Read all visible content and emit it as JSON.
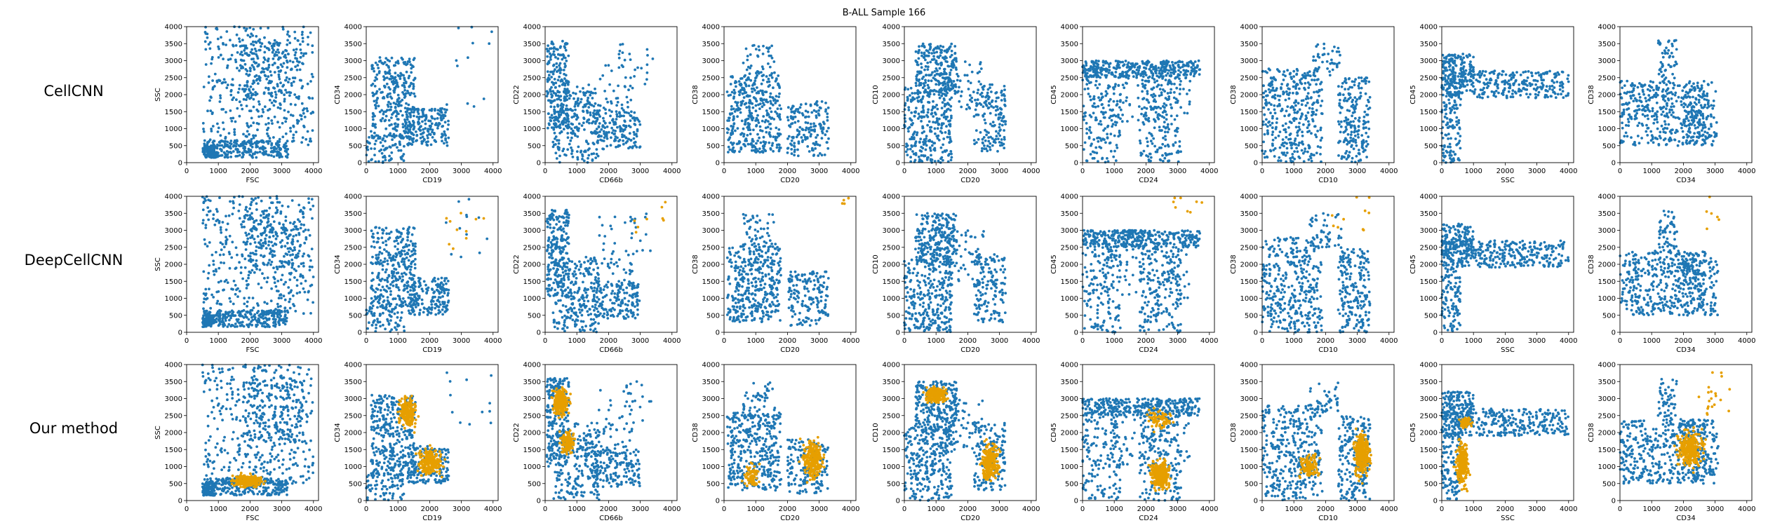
{
  "figure": {
    "title": "B-ALL Sample 166",
    "row_labels": [
      "CellCNN",
      "DeepCellCNN",
      "Our method"
    ]
  },
  "colors": {
    "base": "#1f77b4",
    "highlight": "#e69f00"
  },
  "chart_data": {
    "type": "scatter",
    "title": "B-ALL Sample 166",
    "layout": "3x9 grid of scatter panels",
    "rows": [
      "CellCNN",
      "DeepCellCNN",
      "Our method"
    ],
    "series": [
      {
        "name": "",
        "color": "#1f77b4",
        "role": "all cells"
      },
      {
        "name": "",
        "color": "#e69f00",
        "role": "cells highlighted by the method"
      }
    ],
    "panels": [
      {
        "col": 0,
        "xlabel": "FSC",
        "ylabel": "SSC",
        "xlim": [
          0,
          4000
        ],
        "ylim": [
          0,
          4000
        ]
      },
      {
        "col": 1,
        "xlabel": "CD19",
        "ylabel": "CD34",
        "xlim": [
          0,
          4000
        ],
        "ylim": [
          0,
          4000
        ]
      },
      {
        "col": 2,
        "xlabel": "CD66b",
        "ylabel": "CD22",
        "xlim": [
          0,
          4000
        ],
        "ylim": [
          0,
          4000
        ]
      },
      {
        "col": 3,
        "xlabel": "CD20",
        "ylabel": "CD38",
        "xlim": [
          0,
          4000
        ],
        "ylim": [
          0,
          4000
        ]
      },
      {
        "col": 4,
        "xlabel": "CD20",
        "ylabel": "CD10",
        "xlim": [
          0,
          4000
        ],
        "ylim": [
          0,
          4000
        ]
      },
      {
        "col": 5,
        "xlabel": "CD24",
        "ylabel": "CD45",
        "xlim": [
          0,
          4000
        ],
        "ylim": [
          0,
          4000
        ]
      },
      {
        "col": 6,
        "xlabel": "CD10",
        "ylabel": "CD38",
        "xlim": [
          0,
          4000
        ],
        "ylim": [
          0,
          4000
        ]
      },
      {
        "col": 7,
        "xlabel": "SSC",
        "ylabel": "CD45",
        "xlim": [
          0,
          4000
        ],
        "ylim": [
          0,
          4000
        ]
      },
      {
        "col": 8,
        "xlabel": "CD34",
        "ylabel": "CD38",
        "xlim": [
          0,
          4000
        ],
        "ylim": [
          0,
          4000
        ]
      }
    ],
    "x_ticks": [
      0,
      1000,
      2000,
      3000,
      4000
    ],
    "y_ticks": [
      0,
      500,
      1000,
      1500,
      2000,
      2500,
      3000,
      3500,
      4000
    ],
    "clusters": [
      [
        {
          "x": [
            500,
            4000
          ],
          "y": [
            500,
            4000
          ],
          "n": 400,
          "s": "u"
        },
        {
          "x": [
            550,
            3200
          ],
          "y": [
            150,
            650
          ],
          "n": 260,
          "s": "u"
        },
        {
          "x": [
            1800,
            3700
          ],
          "y": [
            1800,
            3600
          ],
          "n": 160,
          "s": "u"
        },
        {
          "x": [
            500,
            900
          ],
          "y": [
            150,
            500
          ],
          "n": 80,
          "s": "u"
        }
      ],
      [
        {
          "x": [
            150,
            1550
          ],
          "y": [
            700,
            3100
          ],
          "n": 320,
          "s": "u"
        },
        {
          "x": [
            1300,
            2600
          ],
          "y": [
            500,
            1600
          ],
          "n": 180,
          "s": "u"
        },
        {
          "x": [
            0,
            1200
          ],
          "y": [
            0,
            800
          ],
          "n": 70,
          "s": "u"
        },
        {
          "x": [
            2500,
            4000
          ],
          "y": [
            1500,
            4000
          ],
          "n": 12,
          "s": "u"
        }
      ],
      [
        {
          "x": [
            50,
            750
          ],
          "y": [
            1000,
            3600
          ],
          "n": 220,
          "s": "u"
        },
        {
          "x": [
            250,
            1700
          ],
          "y": [
            0,
            2100
          ],
          "n": 200,
          "s": "u"
        },
        {
          "x": [
            1500,
            3000
          ],
          "y": [
            400,
            1500
          ],
          "n": 160,
          "s": "u"
        },
        {
          "x": [
            900,
            2800
          ],
          "y": [
            1300,
            2300
          ],
          "n": 60,
          "s": "u"
        },
        {
          "x": [
            1700,
            3400
          ],
          "y": [
            2300,
            3500
          ],
          "n": 30,
          "s": "u"
        }
      ],
      [
        {
          "x": [
            100,
            1800
          ],
          "y": [
            300,
            2600
          ],
          "n": 380,
          "s": "u"
        },
        {
          "x": [
            2000,
            3300
          ],
          "y": [
            200,
            1800
          ],
          "n": 160,
          "s": "u"
        },
        {
          "x": [
            600,
            1600
          ],
          "y": [
            2600,
            3500
          ],
          "n": 40,
          "s": "u"
        }
      ],
      [
        {
          "x": [
            350,
            1650
          ],
          "y": [
            2000,
            3500
          ],
          "n": 240,
          "s": "u"
        },
        {
          "x": [
            0,
            1500
          ],
          "y": [
            0,
            2200
          ],
          "n": 280,
          "s": "u"
        },
        {
          "x": [
            2200,
            3200
          ],
          "y": [
            300,
            2300
          ],
          "n": 150,
          "s": "u"
        },
        {
          "x": [
            1200,
            2500
          ],
          "y": [
            1500,
            3000
          ],
          "n": 60,
          "s": "u"
        }
      ],
      [
        {
          "x": [
            0,
            3700
          ],
          "y": [
            2500,
            3000
          ],
          "n": 360,
          "s": "u"
        },
        {
          "x": [
            0,
            1200
          ],
          "y": [
            0,
            2500
          ],
          "n": 150,
          "s": "u"
        },
        {
          "x": [
            1800,
            3100
          ],
          "y": [
            0,
            2500
          ],
          "n": 180,
          "s": "u"
        },
        {
          "x": [
            800,
            3400
          ],
          "y": [
            1000,
            2500
          ],
          "n": 70,
          "s": "u"
        }
      ],
      [
        {
          "x": [
            0,
            1900
          ],
          "y": [
            0,
            2800
          ],
          "n": 360,
          "s": "u"
        },
        {
          "x": [
            2400,
            3400
          ],
          "y": [
            0,
            2500
          ],
          "n": 200,
          "s": "u"
        },
        {
          "x": [
            1500,
            2500
          ],
          "y": [
            2500,
            3500
          ],
          "n": 40,
          "s": "u"
        }
      ],
      [
        {
          "x": [
            0,
            4000
          ],
          "y": [
            1900,
            2700
          ],
          "n": 320,
          "s": "u"
        },
        {
          "x": [
            0,
            1000
          ],
          "y": [
            2200,
            3200
          ],
          "n": 150,
          "s": "u"
        },
        {
          "x": [
            0,
            600
          ],
          "y": [
            0,
            2200
          ],
          "n": 120,
          "s": "u"
        }
      ],
      [
        {
          "x": [
            0,
            2700
          ],
          "y": [
            500,
            2400
          ],
          "n": 400,
          "s": "u"
        },
        {
          "x": [
            1200,
            1800
          ],
          "y": [
            2400,
            3600
          ],
          "n": 50,
          "s": "u"
        },
        {
          "x": [
            2000,
            3100
          ],
          "y": [
            500,
            2400
          ],
          "n": 120,
          "s": "u"
        }
      ]
    ],
    "highlights": {
      "CellCNN": [
        [],
        [],
        [],
        [],
        [],
        [],
        [],
        [],
        []
      ],
      "DeepCellCNN": [
        [],
        [
          {
            "x": [
              2400,
              3800
            ],
            "y": [
              2200,
              3800
            ],
            "n": 10,
            "s": "u"
          }
        ],
        [
          {
            "x": [
              2800,
              3800
            ],
            "y": [
              2800,
              3900
            ],
            "n": 8,
            "s": "u"
          }
        ],
        [
          {
            "x": [
              3700,
              4000
            ],
            "y": [
              3600,
              4000
            ],
            "n": 4,
            "s": "u"
          }
        ],
        [],
        [
          {
            "x": [
              2700,
              3800
            ],
            "y": [
              3500,
              4000
            ],
            "n": 8,
            "s": "u"
          }
        ],
        [
          {
            "x": [
              2200,
              3400
            ],
            "y": [
              3000,
              4000
            ],
            "n": 10,
            "s": "u"
          }
        ],
        [],
        [
          {
            "x": [
              2700,
              3800
            ],
            "y": [
              3000,
              4000
            ],
            "n": 6,
            "s": "u"
          }
        ]
      ],
      "Our method": [
        [
          {
            "x": [
              1200,
              2700
            ],
            "y": [
              250,
              900
            ],
            "n": 260,
            "s": "g"
          }
        ],
        [
          {
            "x": [
              800,
              1800
            ],
            "y": [
              1800,
              3400
            ],
            "n": 200,
            "s": "g"
          },
          {
            "x": [
              1300,
              2700
            ],
            "y": [
              400,
              1900
            ],
            "n": 200,
            "s": "g"
          }
        ],
        [
          {
            "x": [
              50,
              950
            ],
            "y": [
              2200,
              3600
            ],
            "n": 280,
            "s": "g"
          },
          {
            "x": [
              300,
              1100
            ],
            "y": [
              1100,
              2300
            ],
            "n": 120,
            "s": "g"
          }
        ],
        [
          {
            "x": [
              2200,
              3400
            ],
            "y": [
              200,
              2200
            ],
            "n": 260,
            "s": "g"
          },
          {
            "x": [
              400,
              1400
            ],
            "y": [
              100,
              1300
            ],
            "n": 70,
            "s": "g"
          }
        ],
        [
          {
            "x": [
              400,
              1600
            ],
            "y": [
              2700,
              3500
            ],
            "n": 280,
            "s": "g"
          },
          {
            "x": [
              2200,
              3200
            ],
            "y": [
              200,
              2100
            ],
            "n": 240,
            "s": "g"
          }
        ],
        [
          {
            "x": [
              1900,
              3000
            ],
            "y": [
              0,
              1500
            ],
            "n": 300,
            "s": "g"
          },
          {
            "x": [
              1700,
              3200
            ],
            "y": [
              1900,
              2900
            ],
            "n": 80,
            "s": "g"
          }
        ],
        [
          {
            "x": [
              2700,
              3600
            ],
            "y": [
              200,
              2600
            ],
            "n": 320,
            "s": "g"
          },
          {
            "x": [
              900,
              2100
            ],
            "y": [
              400,
              1600
            ],
            "n": 120,
            "s": "g"
          }
        ],
        [
          {
            "x": [
              300,
              1000
            ],
            "y": [
              0,
              2200
            ],
            "n": 280,
            "s": "g"
          },
          {
            "x": [
              400,
              1100
            ],
            "y": [
              2000,
              2600
            ],
            "n": 60,
            "s": "g"
          }
        ],
        [
          {
            "x": [
              1500,
              2900
            ],
            "y": [
              500,
              2500
            ],
            "n": 280,
            "s": "g"
          },
          {
            "x": [
              2300,
              3500
            ],
            "y": [
              2400,
              3800
            ],
            "n": 20,
            "s": "u"
          }
        ]
      ]
    }
  }
}
